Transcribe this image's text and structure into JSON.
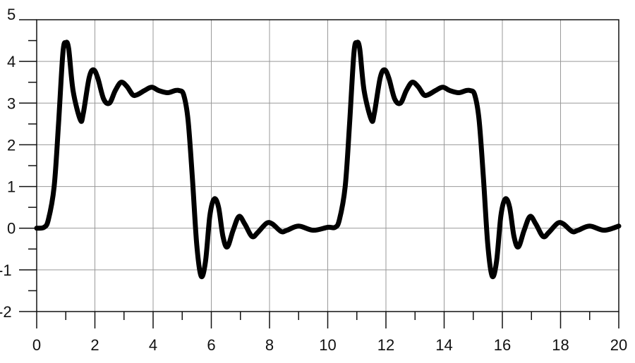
{
  "chart_data": {
    "type": "line",
    "title": "",
    "xlabel": "",
    "ylabel": "",
    "xlim": [
      0,
      20
    ],
    "ylim": [
      -2,
      5
    ],
    "x_ticks": [
      0,
      2,
      4,
      6,
      8,
      10,
      12,
      14,
      16,
      18,
      20
    ],
    "x_minor_ticks": [
      1,
      3,
      5,
      7,
      9,
      11,
      13,
      15,
      17,
      19
    ],
    "y_ticks": [
      -2,
      -1,
      0,
      1,
      2,
      3,
      4,
      5
    ],
    "y_minor_ticks": [
      -1.5,
      -0.5,
      0.5,
      1.5,
      2.5,
      3.5,
      4.5
    ],
    "x_tick_labels": [
      "0",
      "2",
      "4",
      "6",
      "8",
      "10",
      "12",
      "14",
      "16",
      "18",
      "20"
    ],
    "y_tick_labels": [
      "-2",
      "-1",
      "0",
      "1",
      "2",
      "3",
      "4",
      "5"
    ],
    "grid": true,
    "line_color": "#000000",
    "grid_color": "#999999",
    "series": [
      {
        "x": [
          0,
          0.25,
          0.4,
          0.6,
          0.75,
          0.9,
          1.0,
          1.1,
          1.25,
          1.5,
          1.6,
          1.8,
          1.95,
          2.1,
          2.3,
          2.5,
          2.7,
          2.9,
          3.1,
          3.3,
          3.45,
          3.7,
          3.95,
          4.2,
          4.5,
          4.75,
          4.9,
          5.05,
          5.2,
          5.35,
          5.5,
          5.65,
          5.8,
          5.95,
          6.1,
          6.25,
          6.4,
          6.55,
          6.75,
          6.95,
          7.15,
          7.4,
          7.6,
          7.9,
          8.1,
          8.4,
          8.6,
          9.0,
          9.5,
          10.0,
          10.25,
          10.4,
          10.6,
          10.75,
          10.9,
          11.0,
          11.1,
          11.25,
          11.5,
          11.6,
          11.8,
          11.95,
          12.1,
          12.3,
          12.5,
          12.7,
          12.9,
          13.1,
          13.3,
          13.45,
          13.7,
          13.95,
          14.2,
          14.5,
          14.75,
          14.9,
          15.05,
          15.2,
          15.35,
          15.5,
          15.65,
          15.8,
          15.95,
          16.1,
          16.25,
          16.4,
          16.55,
          16.75,
          16.95,
          17.15,
          17.4,
          17.6,
          17.9,
          18.1,
          18.4,
          18.6,
          19.0,
          19.5,
          20.0
        ],
        "y": [
          0,
          0.02,
          0.2,
          1.0,
          2.5,
          4.2,
          4.45,
          4.3,
          3.3,
          2.6,
          2.75,
          3.6,
          3.8,
          3.6,
          3.1,
          3.0,
          3.3,
          3.5,
          3.4,
          3.2,
          3.2,
          3.3,
          3.38,
          3.3,
          3.25,
          3.3,
          3.3,
          3.2,
          2.6,
          1.2,
          -0.4,
          -1.15,
          -0.8,
          0.3,
          0.7,
          0.5,
          -0.2,
          -0.45,
          -0.05,
          0.28,
          0.1,
          -0.2,
          -0.1,
          0.12,
          0.1,
          -0.08,
          -0.05,
          0.05,
          -0.05,
          0.02,
          0.02,
          0.2,
          1.0,
          2.5,
          4.2,
          4.45,
          4.3,
          3.3,
          2.6,
          2.75,
          3.6,
          3.8,
          3.6,
          3.1,
          3.0,
          3.3,
          3.5,
          3.4,
          3.2,
          3.2,
          3.3,
          3.38,
          3.3,
          3.25,
          3.3,
          3.3,
          3.2,
          2.6,
          1.2,
          -0.4,
          -1.15,
          -0.8,
          0.3,
          0.7,
          0.5,
          -0.2,
          -0.45,
          -0.05,
          0.28,
          0.1,
          -0.2,
          -0.1,
          0.12,
          0.1,
          -0.08,
          -0.05,
          0.05,
          -0.05,
          0.05
        ]
      }
    ]
  }
}
